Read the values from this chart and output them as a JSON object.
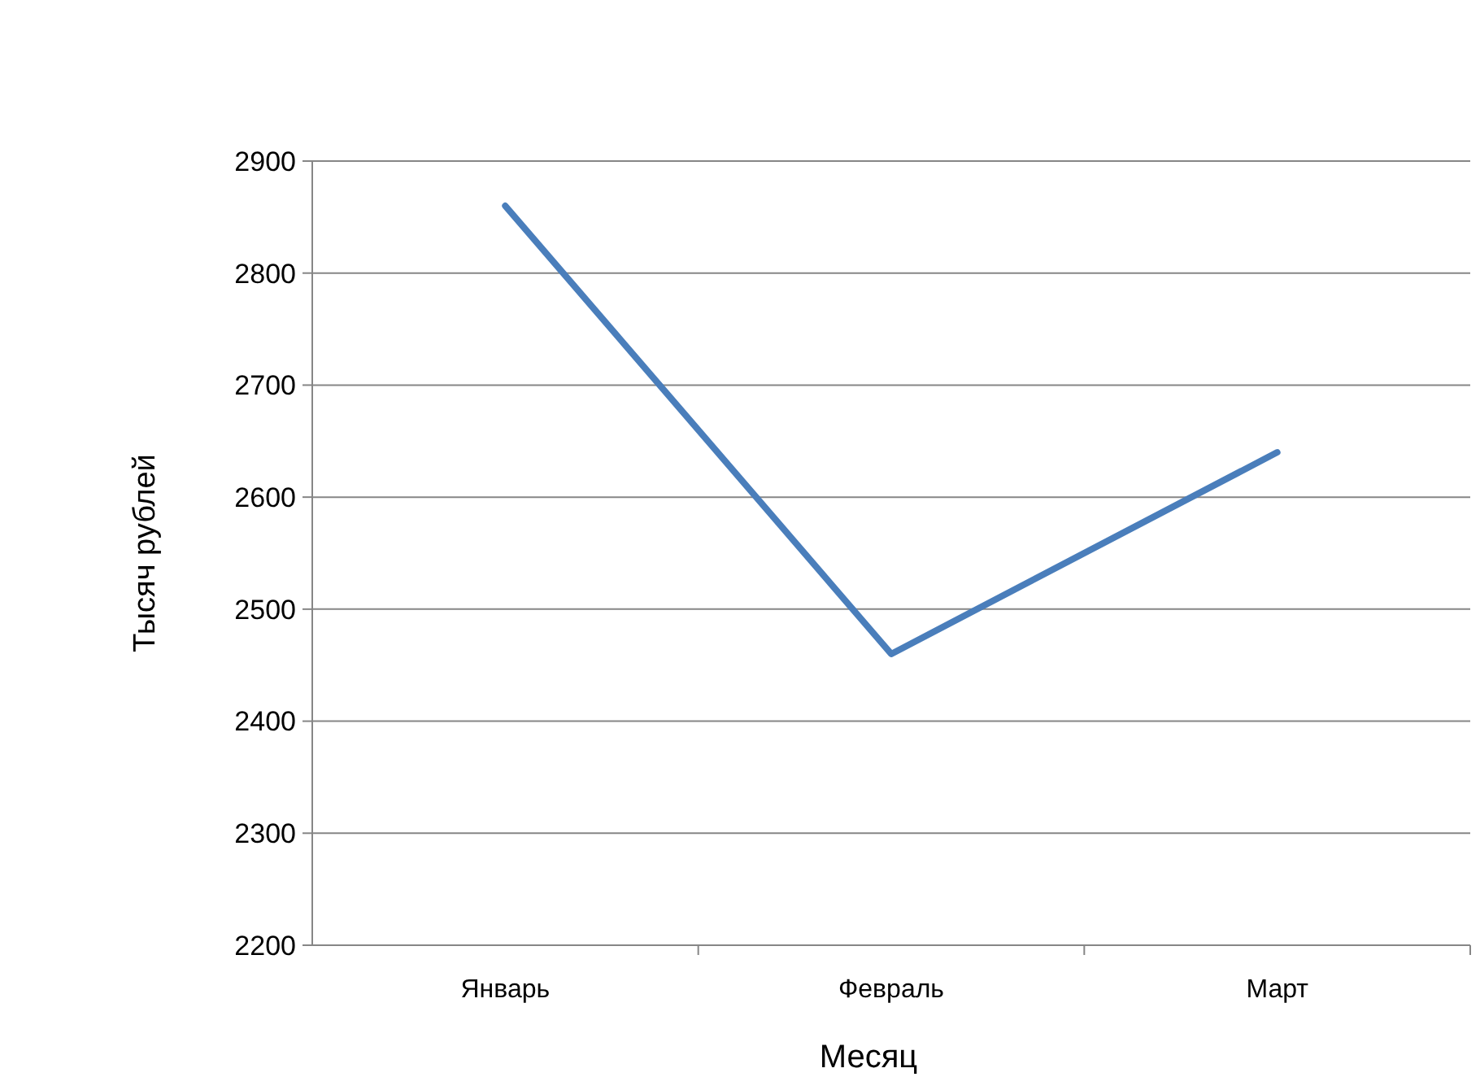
{
  "chart_data": {
    "type": "line",
    "xlabel": "Месяц",
    "ylabel": "Тысяч рублей",
    "categories": [
      "Январь",
      "Февраль",
      "Март"
    ],
    "series": [
      {
        "color": "#4a7ebb",
        "values": [
          2860,
          2460,
          2640
        ]
      }
    ],
    "ylim": [
      2200,
      2900
    ],
    "yticks": [
      2200,
      2300,
      2400,
      2500,
      2600,
      2700,
      2800,
      2900
    ],
    "grid": "y",
    "marker": "none",
    "line_style": "solid"
  }
}
